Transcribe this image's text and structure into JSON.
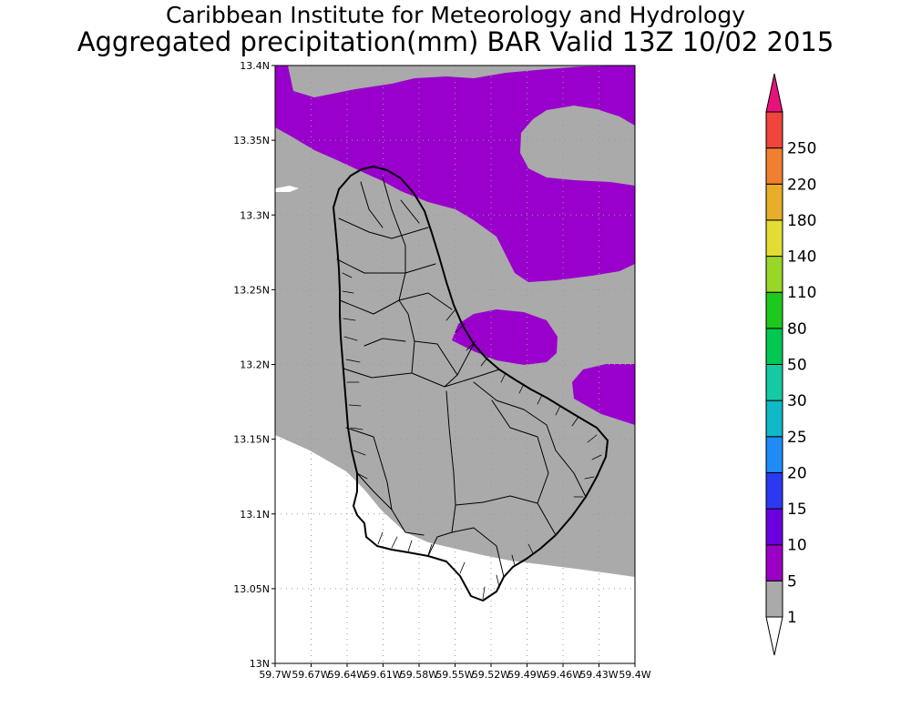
{
  "titles": {
    "line1": "Caribbean Institute for Meteorology and Hydrology",
    "line2": "Aggregated precipitation(mm) BAR Valid 13Z 10/02 2015"
  },
  "map": {
    "region": "Barbados",
    "lon_range": [
      -59.7,
      -59.4
    ],
    "lat_range": [
      13.0,
      13.4
    ],
    "x_ticks": [
      "59.7W",
      "59.67W",
      "59.64W",
      "59.61W",
      "59.58W",
      "59.55W",
      "59.52W",
      "59.49W",
      "59.46W",
      "59.43W",
      "59.4W"
    ],
    "y_ticks": [
      "13N",
      "13.05N",
      "13.1N",
      "13.15N",
      "13.2N",
      "13.25N",
      "13.3N",
      "13.35N",
      "13.4N"
    ],
    "grid": "dotted",
    "fill_colors": {
      "below_1": "#ffffff",
      "1_to_5": "#aaaaaa",
      "5_to_10": "#9900cc"
    }
  },
  "colorbar": {
    "labels": [
      "1",
      "5",
      "10",
      "15",
      "20",
      "25",
      "30",
      "50",
      "80",
      "110",
      "140",
      "180",
      "220",
      "250"
    ],
    "colors": [
      "#aaaaaa",
      "#9b00c6",
      "#6a00e0",
      "#2b39f2",
      "#1e8cf5",
      "#0fb9c8",
      "#15c9a5",
      "#00c850",
      "#1ec91e",
      "#9ad629",
      "#e3dd33",
      "#e8ad2a",
      "#f08030",
      "#f0443c"
    ],
    "low_arrow_color": "#ffffff",
    "high_arrow_color": "#e8137a"
  }
}
